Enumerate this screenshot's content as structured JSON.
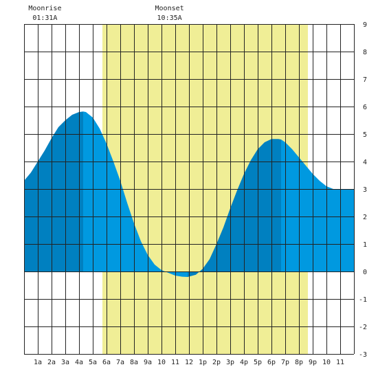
{
  "chart_data": {
    "type": "area",
    "title": "",
    "xlabel": "",
    "ylabel": "",
    "xlim": [
      0,
      24
    ],
    "ylim": [
      -3,
      9
    ],
    "grid": true,
    "x_ticks": [
      {
        "x": 1,
        "label": "1a"
      },
      {
        "x": 2,
        "label": "2a"
      },
      {
        "x": 3,
        "label": "3a"
      },
      {
        "x": 4,
        "label": "4a"
      },
      {
        "x": 5,
        "label": "5a"
      },
      {
        "x": 6,
        "label": "6a"
      },
      {
        "x": 7,
        "label": "7a"
      },
      {
        "x": 8,
        "label": "8a"
      },
      {
        "x": 9,
        "label": "9a"
      },
      {
        "x": 10,
        "label": "10"
      },
      {
        "x": 11,
        "label": "11"
      },
      {
        "x": 12,
        "label": "12"
      },
      {
        "x": 13,
        "label": "1p"
      },
      {
        "x": 14,
        "label": "2p"
      },
      {
        "x": 15,
        "label": "3p"
      },
      {
        "x": 16,
        "label": "4p"
      },
      {
        "x": 17,
        "label": "5p"
      },
      {
        "x": 18,
        "label": "6p"
      },
      {
        "x": 19,
        "label": "7p"
      },
      {
        "x": 20,
        "label": "8p"
      },
      {
        "x": 21,
        "label": "9p"
      },
      {
        "x": 22,
        "label": "10"
      },
      {
        "x": 23,
        "label": "11"
      }
    ],
    "y_ticks": [
      "-3",
      "-2",
      "-1",
      "0",
      "1",
      "2",
      "3",
      "4",
      "5",
      "6",
      "7",
      "8",
      "9"
    ],
    "daylight": {
      "start": 5.7,
      "end": 20.65,
      "color": "#f0ee96"
    },
    "moon_events": [
      {
        "label": "Moonrise",
        "time": "01:31A",
        "x": 1.52
      },
      {
        "label": "Moonset",
        "time": "10:35A",
        "x": 10.58
      }
    ],
    "tide_events": [
      {
        "type": "high",
        "time_hours": 4.3,
        "height": 5.8
      },
      {
        "type": "low",
        "time_hours": 11.9,
        "height": -0.2
      },
      {
        "type": "high",
        "time_hours": 18.7,
        "height": 4.8
      }
    ],
    "series": [
      {
        "x": [
          0,
          0.5,
          1,
          1.5,
          2,
          2.5,
          3,
          3.5,
          4,
          4.3,
          4.5,
          5,
          5.5,
          6,
          6.5,
          7,
          7.5,
          8,
          8.5,
          9,
          9.5,
          10,
          10.5,
          11,
          11.5,
          11.9,
          12.5,
          13,
          13.5,
          14,
          14.5,
          15,
          15.5,
          16,
          16.5,
          17,
          17.5,
          18,
          18.5,
          18.7,
          19,
          19.5,
          20,
          20.5,
          21,
          21.5,
          22,
          22.5,
          23,
          23.5,
          24
        ],
        "values": [
          3.3,
          3.6,
          4.0,
          4.4,
          4.85,
          5.25,
          5.5,
          5.7,
          5.8,
          5.82,
          5.8,
          5.6,
          5.2,
          4.65,
          4.0,
          3.3,
          2.5,
          1.75,
          1.1,
          0.6,
          0.25,
          0.05,
          -0.05,
          -0.15,
          -0.19,
          -0.2,
          -0.12,
          0.1,
          0.45,
          1.0,
          1.6,
          2.3,
          2.95,
          3.55,
          4.05,
          4.45,
          4.7,
          4.82,
          4.82,
          4.8,
          4.7,
          4.45,
          4.15,
          3.85,
          3.55,
          3.3,
          3.1,
          3.0,
          3.0,
          3.0,
          3.0
        ]
      }
    ],
    "colors": {
      "fill_light": "#0099e0",
      "fill_dark": "#0080c0",
      "grid": "#222222",
      "axis_text": "#222222"
    }
  }
}
